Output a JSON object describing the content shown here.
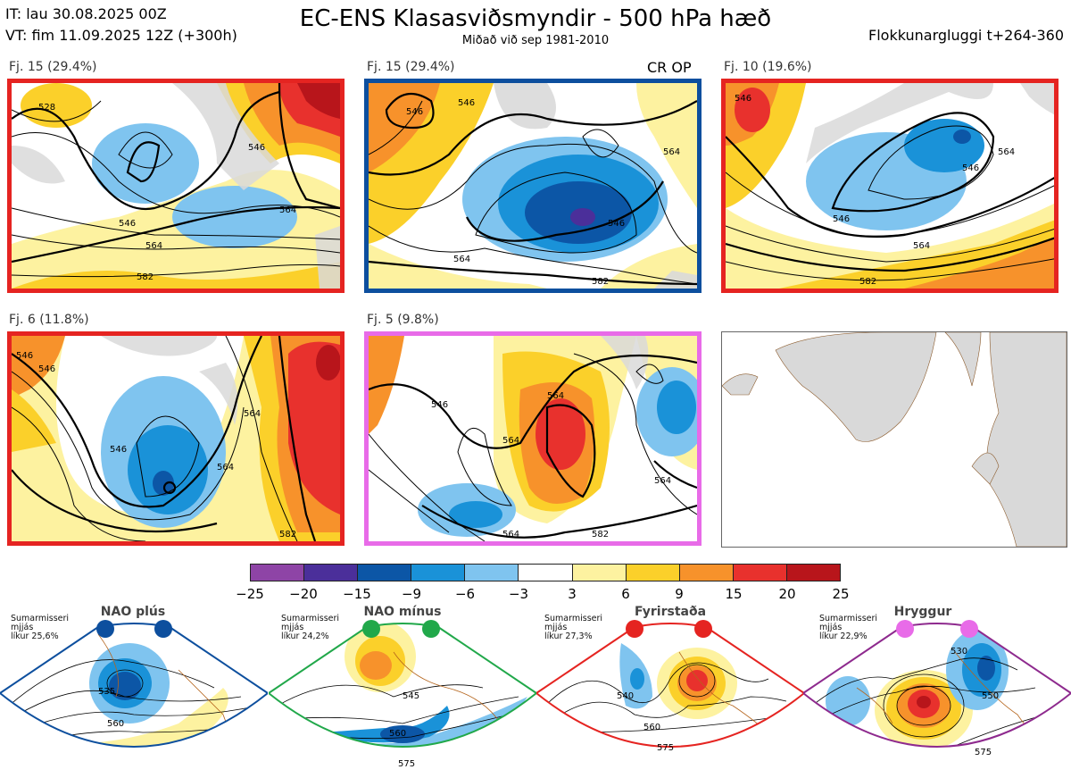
{
  "header": {
    "it_line": "IT: lau 30.08.2025 00Z",
    "vt_line": "VT: fim 11.09.2025 12Z  (+300h)",
    "title": "EC-ENS Klasasviðsmyndir - 500 hPa hæð",
    "subtitle": "Miðað við sep 1981-2010",
    "window": "Flokkunargluggi t+264-360"
  },
  "panels": [
    {
      "label": "Fj. 15 (29.4%)",
      "border": "#e52421",
      "contours": [
        "528",
        "546",
        "546",
        "564",
        "564",
        "582"
      ]
    },
    {
      "label": "Fj. 15 (29.4%)",
      "tag": "CR OP",
      "border": "#0d4f9e",
      "contours": [
        "546",
        "546",
        "546",
        "564",
        "564",
        "582"
      ]
    },
    {
      "label": "Fj. 10 (19.6%)",
      "border": "#e52421",
      "contours": [
        "546",
        "546",
        "546",
        "564",
        "564",
        "582"
      ]
    },
    {
      "label": "Fj. 6 (11.8%)",
      "border": "#e52421",
      "contours": [
        "546",
        "546",
        "546",
        "564",
        "564",
        "582"
      ]
    },
    {
      "label": "Fj. 5 (9.8%)",
      "border": "#e86be8",
      "contours": [
        "546",
        "564",
        "564",
        "564",
        "582",
        "564"
      ]
    }
  ],
  "colorbar": {
    "colors": [
      "#8e44a6",
      "#4b2f9a",
      "#0c56a6",
      "#1a92d8",
      "#7fc4ef",
      "#ffffff",
      "#fdf2a0",
      "#fbd02a",
      "#f7922b",
      "#e8312d",
      "#b8151b"
    ],
    "ticks": [
      "−25",
      "−20",
      "−15",
      "−9",
      "−6",
      "−3",
      "3",
      "6",
      "9",
      "15",
      "20",
      "25"
    ]
  },
  "regimes": [
    {
      "name": "NAO plús",
      "line1": "Sumarmisseri",
      "line2": "mjjás",
      "line3": "líkur 25,6%",
      "color": "#0d4f9e",
      "contours": [
        "535",
        "560"
      ]
    },
    {
      "name": "NAO mínus",
      "line1": "Sumarmisseri",
      "line2": "mjjás",
      "line3": "líkur 24,2%",
      "color": "#21a84a",
      "contours": [
        "545",
        "560",
        "575"
      ]
    },
    {
      "name": "Fyrirstaða",
      "line1": "Sumarmisseri",
      "line2": "mjjás",
      "line3": "líkur 27,3%",
      "color": "#e52421",
      "contours": [
        "540",
        "560",
        "575"
      ]
    },
    {
      "name": "Hryggur",
      "line1": "Sumarmisseri",
      "line2": "mjjás",
      "line3": "líkur 22,9%",
      "color": "#e86be8",
      "contours": [
        "530",
        "550",
        "575"
      ]
    }
  ]
}
